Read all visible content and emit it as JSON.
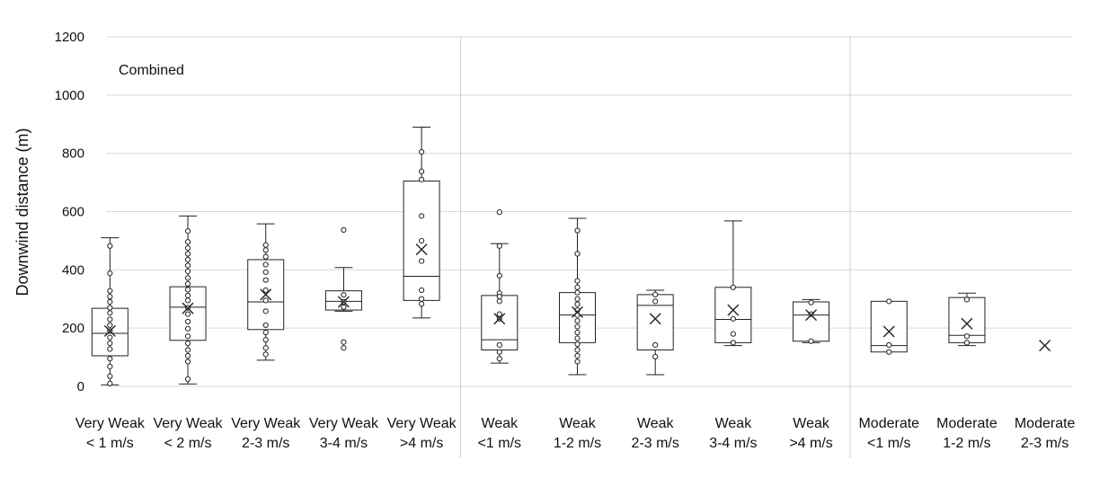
{
  "chart_data": {
    "type": "box",
    "title": "",
    "annotation": "Combined",
    "xlabel": "",
    "ylabel": "Downwind distance (m)",
    "ylim": [
      0,
      1200
    ],
    "yticks": [
      "0",
      "200",
      "400",
      "600",
      "800",
      "1000",
      "1200"
    ],
    "grid": true,
    "groups": [
      {
        "name": "Very Weak",
        "categories": [
          0,
          1,
          2,
          3,
          4
        ]
      },
      {
        "name": "Weak",
        "categories": [
          5,
          6,
          7,
          8,
          9
        ]
      },
      {
        "name": "Moderate",
        "categories": [
          10,
          11,
          12
        ]
      }
    ],
    "categories": [
      {
        "line1": "Very Weak",
        "line2": "< 1 m/s",
        "min": 5,
        "q1": 105,
        "median": 182,
        "q3": 268,
        "max": 510,
        "mean": 190,
        "points": [
          482,
          388,
          328,
          308,
          290,
          270,
          252,
          230,
          210,
          190,
          168,
          148,
          128,
          95,
          68,
          35,
          10
        ]
      },
      {
        "line1": "Very Weak",
        "line2": "< 2 m/s",
        "min": 8,
        "q1": 158,
        "median": 272,
        "q3": 342,
        "max": 585,
        "mean": 268,
        "points": [
          533,
          496,
          475,
          455,
          435,
          415,
          395,
          372,
          352,
          332,
          312,
          295,
          270,
          248,
          222,
          198,
          172,
          148,
          125,
          105,
          85,
          25
        ]
      },
      {
        "line1": "Very Weak",
        "line2": "2-3 m/s",
        "min": 90,
        "q1": 195,
        "median": 290,
        "q3": 435,
        "max": 558,
        "mean": 315,
        "points": [
          485,
          468,
          445,
          418,
          392,
          365,
          330,
          295,
          258,
          210,
          185,
          160,
          132,
          110
        ]
      },
      {
        "line1": "Very Weak",
        "line2": "3-4 m/s",
        "min": 258,
        "q1": 262,
        "median": 292,
        "q3": 328,
        "max": 408,
        "mean": 290,
        "points": [
          537,
          314,
          290,
          272,
          152,
          132
        ]
      },
      {
        "line1": "Very Weak",
        "line2": ">4 m/s",
        "min": 235,
        "q1": 295,
        "median": 378,
        "q3": 705,
        "max": 890,
        "mean": 470,
        "points": [
          805,
          738,
          710,
          585,
          500,
          430,
          330,
          300,
          283
        ]
      },
      {
        "line1": "Weak",
        "line2": "<1 m/s",
        "min": 80,
        "q1": 125,
        "median": 160,
        "q3": 312,
        "max": 490,
        "mean": 232,
        "points": [
          598,
          482,
          380,
          320,
          308,
          292,
          248,
          232,
          142,
          118,
          95
        ]
      },
      {
        "line1": "Weak",
        "line2": "1-2 m/s",
        "min": 40,
        "q1": 150,
        "median": 245,
        "q3": 322,
        "max": 577,
        "mean": 255,
        "points": [
          535,
          455,
          362,
          340,
          322,
          300,
          282,
          262,
          245,
          225,
          205,
          185,
          165,
          145,
          125,
          105,
          85
        ]
      },
      {
        "line1": "Weak",
        "line2": "2-3 m/s",
        "min": 40,
        "q1": 125,
        "median": 278,
        "q3": 315,
        "max": 330,
        "mean": 232,
        "points": [
          315,
          292,
          142,
          102
        ]
      },
      {
        "line1": "Weak",
        "line2": "3-4 m/s",
        "min": 140,
        "q1": 150,
        "median": 230,
        "q3": 340,
        "max": 568,
        "mean": 262,
        "points": [
          340,
          232,
          180,
          150
        ]
      },
      {
        "line1": "Weak",
        "line2": ">4 m/s",
        "min": 150,
        "q1": 155,
        "median": 245,
        "q3": 290,
        "max": 298,
        "mean": 245,
        "points": [
          288,
          248,
          155
        ]
      },
      {
        "line1": "Moderate",
        "line2": "<1 m/s",
        "min": 118,
        "q1": 118,
        "median": 140,
        "q3": 292,
        "max": 292,
        "mean": 188,
        "points": [
          292,
          142,
          118
        ]
      },
      {
        "line1": "Moderate",
        "line2": "1-2 m/s",
        "min": 140,
        "q1": 150,
        "median": 175,
        "q3": 305,
        "max": 320,
        "mean": 215,
        "points": [
          298,
          172,
          150
        ]
      },
      {
        "line1": "Moderate",
        "line2": "2-3 m/s",
        "min": 140,
        "q1": 140,
        "median": 140,
        "q3": 140,
        "max": 140,
        "mean": 140,
        "points": []
      }
    ]
  }
}
